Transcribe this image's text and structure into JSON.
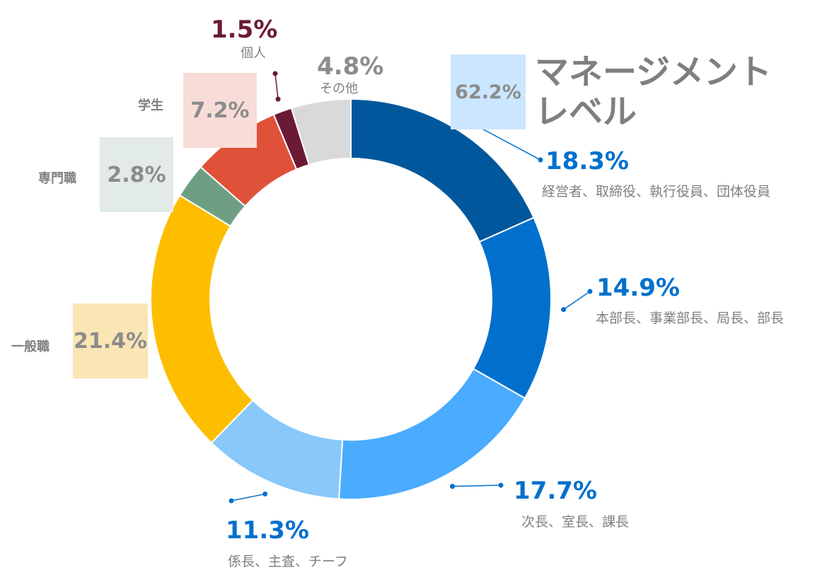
{
  "chart_data": {
    "type": "pie",
    "slices": [
      {
        "label": "経営者、取締役、執行役員、団体役員",
        "value": 18.3,
        "pct_text": "18.3%",
        "color": "#00579c"
      },
      {
        "label": "本部長、事業部長、局長、部長",
        "value": 14.9,
        "pct_text": "14.9%",
        "color": "#0070cc"
      },
      {
        "label": "次長、室長、課長",
        "value": 17.7,
        "pct_text": "17.7%",
        "color": "#4aabff"
      },
      {
        "label": "係長、主査、チーフ",
        "value": 11.3,
        "pct_text": "11.3%",
        "color": "#88c8fb"
      },
      {
        "label": "一般職",
        "value": 21.4,
        "pct_text": "21.4%",
        "color": "#fdbe00"
      },
      {
        "label": "専門職",
        "value": 2.8,
        "pct_text": "2.8%",
        "color": "#6e9f84"
      },
      {
        "label": "学生",
        "value": 7.2,
        "pct_text": "7.2%",
        "color": "#e0513a"
      },
      {
        "label": "個人",
        "value": 1.5,
        "pct_text": "1.5%",
        "color": "#6b1a34"
      },
      {
        "label": "その他",
        "value": 4.8,
        "pct_text": "4.8%",
        "color": "#d9d9d9"
      }
    ],
    "group": {
      "label": "マネージメントレベル",
      "value": 62.2,
      "pct_text": "62.2%",
      "color": "#cbe6ff"
    }
  },
  "labels": {
    "mgmt_title_1": "マネージメント",
    "mgmt_title_2": "レベル",
    "label_blue": "#0070cc",
    "label_grey": "#8c8c8c",
    "label_maroon": "#6b1a34"
  }
}
